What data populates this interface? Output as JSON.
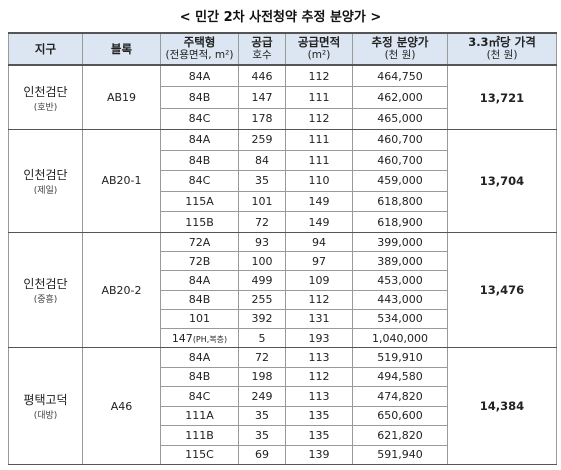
{
  "title": "< 민간 2차 사전청약 추정 분양가 >",
  "header": [
    {
      "main": "지구"
    },
    {
      "main": "블록"
    },
    {
      "main": "주택형",
      "sub": "(전용면적, m²)"
    },
    {
      "main": "공급",
      "sub": "호수"
    },
    {
      "main": "공급면적",
      "sub": "(m²)"
    },
    {
      "main": "추정 분양가",
      "sub": "(천 원)"
    },
    {
      "main": "3.3㎡당 가격",
      "sub": "(천 원)"
    }
  ],
  "groups": [
    {
      "district": "인천검단",
      "builder": "(호반)",
      "block": "AB19",
      "unit_price": "13,721",
      "rows": [
        [
          "84A",
          "446",
          "112",
          "464,750"
        ],
        [
          "84B",
          "147",
          "111",
          "462,000"
        ],
        [
          "84C",
          "178",
          "112",
          "465,000"
        ]
      ]
    },
    {
      "district": "인천검단",
      "builder": "(제일)",
      "block": "AB20-1",
      "unit_price": "13,704",
      "rows": [
        [
          "84A",
          "259",
          "111",
          "460,700"
        ],
        [
          "84B",
          "84",
          "111",
          "460,700"
        ],
        [
          "84C",
          "35",
          "110",
          "459,000"
        ],
        [
          "115A",
          "101",
          "149",
          "618,800"
        ],
        [
          "115B",
          "72",
          "149",
          "618,900"
        ]
      ]
    },
    {
      "district": "인천검단",
      "builder": "(중흥)",
      "block": "AB20-2",
      "unit_price": "13,476",
      "rows": [
        [
          "72A",
          "93",
          "94",
          "399,000"
        ],
        [
          "72B",
          "100",
          "97",
          "389,000"
        ],
        [
          "84A",
          "499",
          "109",
          "453,000"
        ],
        [
          "84B",
          "255",
          "112",
          "443,000"
        ],
        [
          "101",
          "392",
          "131",
          "534,000"
        ],
        [
          "147",
          "5",
          "193",
          "1,040,000"
        ]
      ],
      "note": {
        "row": 5,
        "text": "(PH,복층)"
      }
    },
    {
      "district": "평택고덕",
      "builder": "(대방)",
      "block": "A46",
      "unit_price": "14,384",
      "rows": [
        [
          "84A",
          "72",
          "113",
          "519,910"
        ],
        [
          "84B",
          "198",
          "112",
          "494,580"
        ],
        [
          "84C",
          "249",
          "113",
          "474,820"
        ],
        [
          "111A",
          "35",
          "135",
          "650,600"
        ],
        [
          "111B",
          "35",
          "135",
          "621,820"
        ],
        [
          "115C",
          "69",
          "139",
          "591,940"
        ]
      ]
    }
  ]
}
